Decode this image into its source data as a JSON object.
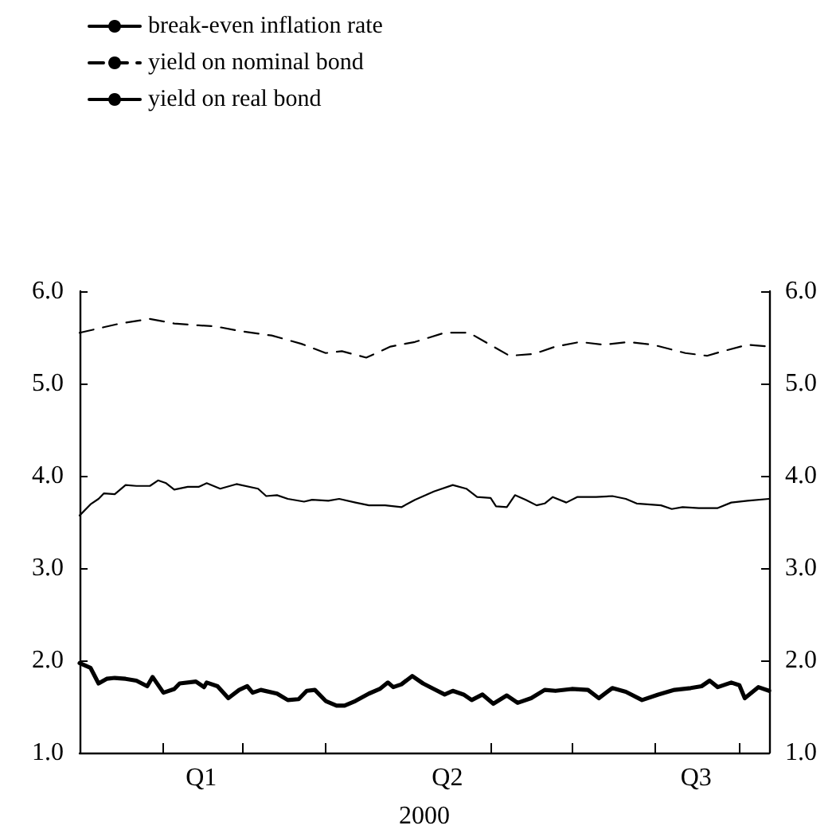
{
  "chart_data": {
    "type": "line",
    "xlabel": "2000",
    "legend": "top left",
    "grid": false,
    "marker": "none",
    "xlim": [
      "2000-01-01",
      "2000-09-12"
    ],
    "xticks": [
      {
        "value": "2000-02-01",
        "label": null
      },
      {
        "value": "2000-03-01",
        "label": null
      },
      {
        "value": "2000-04-01",
        "label": null
      },
      {
        "value": "2000-06-01",
        "label": null
      },
      {
        "value": "2000-07-01",
        "label": null
      },
      {
        "value": "2000-08-01",
        "label": null
      },
      {
        "value": "2000-09-01",
        "label": null
      },
      {
        "value": "2000-02-15",
        "label": "Q1"
      },
      {
        "value": "2000-05-16",
        "label": "Q2"
      },
      {
        "value": "2000-08-16",
        "label": "Q3"
      }
    ],
    "ylim": [
      1,
      6
    ],
    "yticks": [
      {
        "value": 1,
        "label": "1.0"
      },
      {
        "value": 2,
        "label": "2.0"
      },
      {
        "value": 3,
        "label": "3.0"
      },
      {
        "value": 4,
        "label": "4.0"
      },
      {
        "value": 5,
        "label": "5.0"
      },
      {
        "value": 6,
        "label": "6.0"
      }
    ],
    "y2lim": [
      1,
      6
    ],
    "y2ticks": [
      {
        "value": 1,
        "label": "1.0"
      },
      {
        "value": 2,
        "label": "2.0"
      },
      {
        "value": 3,
        "label": "3.0"
      },
      {
        "value": 4,
        "label": "4.0"
      },
      {
        "value": 5,
        "label": "5.0"
      },
      {
        "value": 6,
        "label": "6.0"
      }
    ],
    "series": [
      {
        "name": "break-even inflation rate",
        "color": "#000000",
        "line_style": "solid",
        "x": [
          "2000-01-01",
          "2000-01-05",
          "2000-01-08",
          "2000-01-11",
          "2000-01-14",
          "2000-01-18",
          "2000-01-22",
          "2000-01-26",
          "2000-01-28",
          "2000-02-01",
          "2000-02-05",
          "2000-02-07",
          "2000-02-13",
          "2000-02-16",
          "2000-02-17",
          "2000-02-21",
          "2000-02-25",
          "2000-02-29",
          "2000-03-03",
          "2000-03-05",
          "2000-03-08",
          "2000-03-14",
          "2000-03-18",
          "2000-03-22",
          "2000-03-25",
          "2000-03-28",
          "2000-04-01",
          "2000-04-05",
          "2000-04-08",
          "2000-04-12",
          "2000-04-17",
          "2000-04-21",
          "2000-04-24",
          "2000-04-26",
          "2000-04-29",
          "2000-05-03",
          "2000-05-07",
          "2000-05-11",
          "2000-05-15",
          "2000-05-18",
          "2000-05-22",
          "2000-05-25",
          "2000-05-29",
          "2000-06-02",
          "2000-06-07",
          "2000-06-11",
          "2000-06-16",
          "2000-06-21",
          "2000-06-25",
          "2000-07-01",
          "2000-07-07",
          "2000-07-11",
          "2000-07-16",
          "2000-07-21",
          "2000-07-27",
          "2000-08-02",
          "2000-08-08",
          "2000-08-14",
          "2000-08-18",
          "2000-08-21",
          "2000-08-24",
          "2000-08-29",
          "2000-09-01",
          "2000-09-03",
          "2000-09-08",
          "2000-09-12"
        ],
        "values": [
          1.97,
          1.92,
          1.75,
          1.8,
          1.81,
          1.8,
          1.78,
          1.72,
          1.82,
          1.65,
          1.69,
          1.75,
          1.77,
          1.71,
          1.76,
          1.72,
          1.59,
          1.68,
          1.72,
          1.65,
          1.68,
          1.64,
          1.57,
          1.58,
          1.67,
          1.68,
          1.56,
          1.51,
          1.51,
          1.56,
          1.64,
          1.69,
          1.76,
          1.71,
          1.74,
          1.83,
          1.75,
          1.69,
          1.63,
          1.67,
          1.63,
          1.57,
          1.63,
          1.53,
          1.62,
          1.54,
          1.59,
          1.68,
          1.67,
          1.69,
          1.68,
          1.59,
          1.7,
          1.66,
          1.57,
          1.63,
          1.68,
          1.7,
          1.72,
          1.78,
          1.71,
          1.76,
          1.73,
          1.59,
          1.71,
          1.67
        ]
      },
      {
        "name": "yield on nominal bond",
        "color": "#000000",
        "line_style": "dashed",
        "x": [
          "2000-01-01",
          "2000-01-16",
          "2000-01-27",
          "2000-02-05",
          "2000-02-14",
          "2000-02-20",
          "2000-02-29",
          "2000-03-12",
          "2000-03-23",
          "2000-04-01",
          "2000-04-07",
          "2000-04-16",
          "2000-04-25",
          "2000-05-04",
          "2000-05-15",
          "2000-05-24",
          "2000-05-30",
          "2000-06-08",
          "2000-06-17",
          "2000-06-25",
          "2000-07-04",
          "2000-07-13",
          "2000-07-22",
          "2000-07-31",
          "2000-08-12",
          "2000-08-20",
          "2000-08-26",
          "2000-09-04",
          "2000-09-12"
        ],
        "values": [
          5.55,
          5.65,
          5.7,
          5.65,
          5.63,
          5.62,
          5.57,
          5.52,
          5.43,
          5.33,
          5.35,
          5.28,
          5.4,
          5.45,
          5.55,
          5.55,
          5.45,
          5.3,
          5.32,
          5.4,
          5.45,
          5.42,
          5.45,
          5.42,
          5.33,
          5.3,
          5.35,
          5.42,
          5.4
        ]
      },
      {
        "name": "yield on real bond",
        "color": "#000000",
        "line_style": "solid",
        "x": [
          "2000-01-01",
          "2000-01-05",
          "2000-01-08",
          "2000-01-10",
          "2000-01-14",
          "2000-01-18",
          "2000-01-22",
          "2000-01-27",
          "2000-01-30",
          "2000-02-02",
          "2000-02-05",
          "2000-02-10",
          "2000-02-14",
          "2000-02-17",
          "2000-02-22",
          "2000-02-28",
          "2000-03-07",
          "2000-03-10",
          "2000-03-14",
          "2000-03-18",
          "2000-03-24",
          "2000-03-27",
          "2000-04-02",
          "2000-04-06",
          "2000-04-12",
          "2000-04-17",
          "2000-04-23",
          "2000-04-29",
          "2000-05-04",
          "2000-05-08",
          "2000-05-11",
          "2000-05-18",
          "2000-05-23",
          "2000-05-27",
          "2000-06-01",
          "2000-06-03",
          "2000-06-07",
          "2000-06-10",
          "2000-06-14",
          "2000-06-18",
          "2000-06-21",
          "2000-06-24",
          "2000-06-29",
          "2000-07-03",
          "2000-07-10",
          "2000-07-16",
          "2000-07-21",
          "2000-07-25",
          "2000-07-29",
          "2000-08-03",
          "2000-08-07",
          "2000-08-11",
          "2000-08-17",
          "2000-08-24",
          "2000-08-29",
          "2000-09-04",
          "2000-09-12"
        ],
        "values": [
          3.57,
          3.69,
          3.75,
          3.81,
          3.8,
          3.9,
          3.89,
          3.89,
          3.95,
          3.92,
          3.85,
          3.88,
          3.88,
          3.92,
          3.86,
          3.91,
          3.86,
          3.78,
          3.79,
          3.75,
          3.72,
          3.74,
          3.73,
          3.75,
          3.71,
          3.68,
          3.68,
          3.66,
          3.74,
          3.79,
          3.83,
          3.9,
          3.86,
          3.77,
          3.76,
          3.67,
          3.66,
          3.79,
          3.74,
          3.68,
          3.7,
          3.77,
          3.71,
          3.77,
          3.77,
          3.78,
          3.75,
          3.7,
          3.69,
          3.68,
          3.64,
          3.66,
          3.65,
          3.65,
          3.71,
          3.73,
          3.75
        ]
      }
    ]
  }
}
